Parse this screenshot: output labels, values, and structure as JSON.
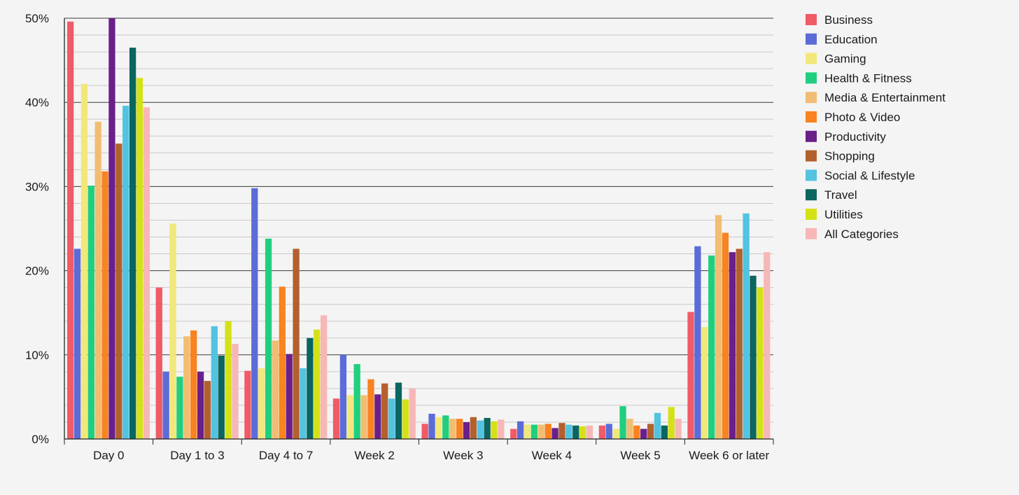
{
  "chart_data": {
    "type": "bar",
    "title": "",
    "xlabel": "",
    "ylabel": "",
    "ylim": [
      0,
      50
    ],
    "y_ticks": [
      "0%",
      "10%",
      "20%",
      "30%",
      "40%",
      "50%"
    ],
    "y_tick_values": [
      0,
      10,
      20,
      30,
      40,
      50
    ],
    "y_unit": "%",
    "grid": true,
    "legend_position": "right",
    "categories": [
      "Day 0",
      "Day 1 to 3",
      "Day 4 to 7",
      "Week 2",
      "Week 3",
      "Week 4",
      "Week 5",
      "Week 6 or later"
    ],
    "series": [
      {
        "name": "Business",
        "color": "#ef5b67",
        "values": [
          49.6,
          18.0,
          8.1,
          4.8,
          1.8,
          1.2,
          1.6,
          15.1
        ]
      },
      {
        "name": "Education",
        "color": "#5b6cd9",
        "values": [
          22.6,
          8.0,
          29.8,
          10.0,
          3.0,
          2.1,
          1.8,
          22.9
        ]
      },
      {
        "name": "Gaming",
        "color": "#f2e77a",
        "values": [
          42.2,
          25.6,
          8.4,
          5.2,
          2.6,
          1.7,
          1.2,
          13.3
        ]
      },
      {
        "name": "Health & Fitness",
        "color": "#20cf7e",
        "values": [
          30.1,
          7.4,
          23.8,
          8.9,
          2.8,
          1.7,
          3.9,
          21.8
        ]
      },
      {
        "name": "Media & Entertainment",
        "color": "#f1bd72",
        "values": [
          37.7,
          12.2,
          11.7,
          5.2,
          2.4,
          1.7,
          2.4,
          26.6
        ]
      },
      {
        "name": "Photo & Video",
        "color": "#f88320",
        "values": [
          31.8,
          12.9,
          18.1,
          7.1,
          2.4,
          1.8,
          1.6,
          24.5
        ]
      },
      {
        "name": "Productivity",
        "color": "#6a1f8a",
        "values": [
          50.0,
          8.0,
          10.1,
          5.3,
          2.0,
          1.3,
          1.2,
          22.2
        ]
      },
      {
        "name": "Shopping",
        "color": "#b3602e",
        "values": [
          35.1,
          6.9,
          22.6,
          6.6,
          2.6,
          1.9,
          1.8,
          22.6
        ]
      },
      {
        "name": "Social & Lifestyle",
        "color": "#52c3e0",
        "values": [
          39.6,
          13.4,
          8.4,
          4.8,
          2.2,
          1.7,
          3.1,
          26.8
        ]
      },
      {
        "name": "Travel",
        "color": "#0b6560",
        "values": [
          46.5,
          9.9,
          12.0,
          6.7,
          2.5,
          1.6,
          1.6,
          19.4
        ]
      },
      {
        "name": "Utilities",
        "color": "#d5e117",
        "values": [
          42.9,
          14.0,
          13.0,
          4.7,
          2.1,
          1.5,
          3.8,
          18.0
        ]
      },
      {
        "name": "All Categories",
        "color": "#f7b7b7",
        "values": [
          39.4,
          11.3,
          14.7,
          6.0,
          2.3,
          1.6,
          2.4,
          22.2
        ]
      }
    ]
  }
}
